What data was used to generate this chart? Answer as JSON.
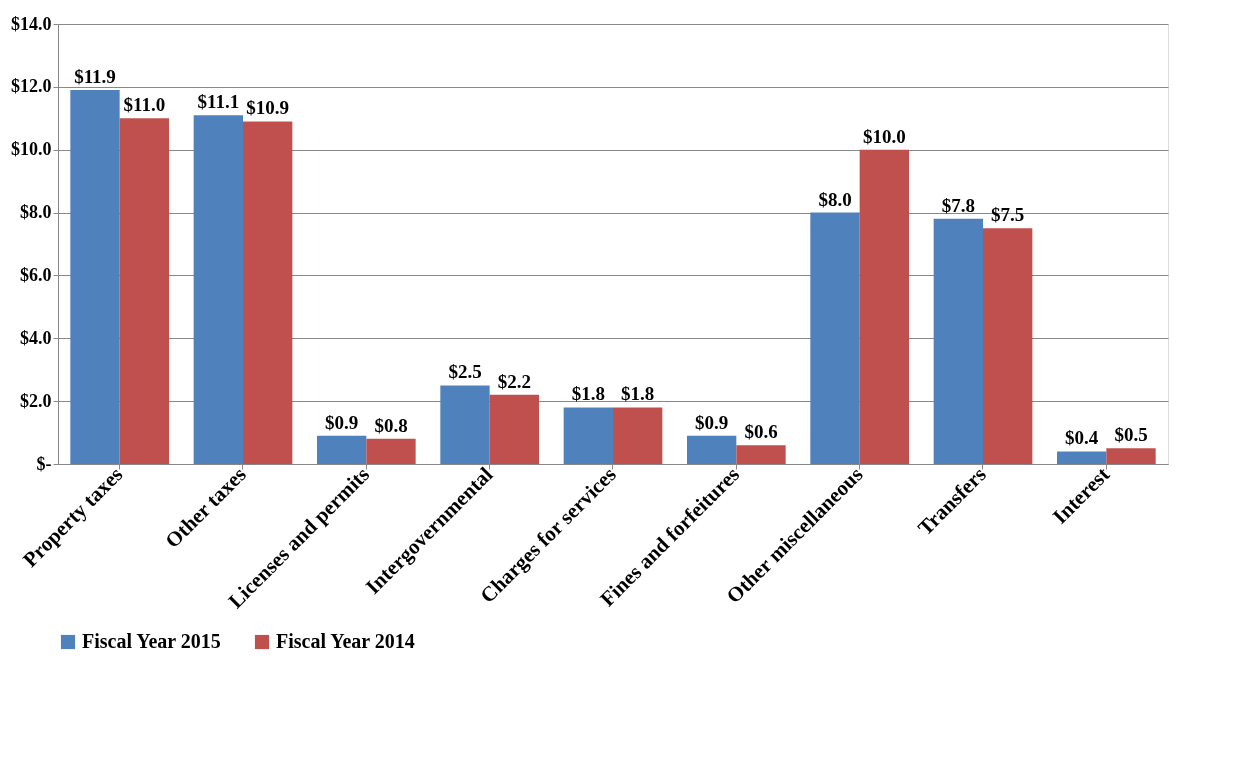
{
  "chart_data": {
    "type": "bar",
    "categories": [
      "Property taxes",
      "Other taxes",
      "Licenses and permits",
      "Intergovernmental",
      "Charges for services",
      "Fines and forfeitures",
      "Other miscellaneous",
      "Transfers",
      "Interest"
    ],
    "series": [
      {
        "name": "Fiscal Year 2015",
        "color": "#4f81bd",
        "values": [
          11.9,
          11.1,
          0.9,
          2.5,
          1.8,
          0.9,
          8.0,
          7.8,
          0.4
        ],
        "value_labels": [
          "$11.9",
          "$11.1",
          "$0.9",
          "$2.5",
          "$1.8",
          "$0.9",
          "$8.0",
          "$7.8",
          "$0.4"
        ]
      },
      {
        "name": "Fiscal Year 2014",
        "color": "#c0504d",
        "values": [
          11.0,
          10.9,
          0.8,
          2.2,
          1.8,
          0.6,
          10.0,
          7.5,
          0.5
        ],
        "value_labels": [
          "$11.0",
          "$10.9",
          "$0.8",
          "$2.2",
          "$1.8",
          "$0.6",
          "$10.0",
          "$7.5",
          "$0.5"
        ]
      }
    ],
    "ylim": [
      0,
      14
    ],
    "yticks": [
      {
        "value": 0,
        "label": "$-"
      },
      {
        "value": 2,
        "label": "$2.0"
      },
      {
        "value": 4,
        "label": "$4.0"
      },
      {
        "value": 6,
        "label": "$6.0"
      },
      {
        "value": 8,
        "label": "$8.0"
      },
      {
        "value": 10,
        "label": "$10.0"
      },
      {
        "value": 12,
        "label": "$12.0"
      },
      {
        "value": 14,
        "label": "$14.0"
      }
    ],
    "grid": "y",
    "legend": "bottom"
  }
}
